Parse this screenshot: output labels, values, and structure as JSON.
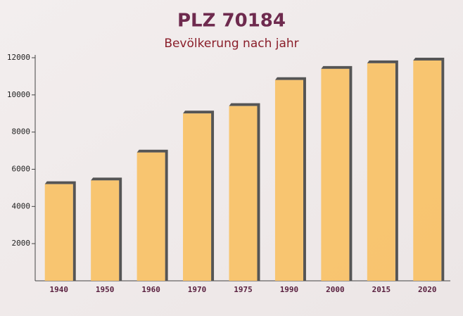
{
  "chart_data": {
    "type": "bar",
    "title": "PLZ 70184",
    "subtitle": "Bevölkerung nach jahr",
    "categories": [
      "1940",
      "1950",
      "1960",
      "1970",
      "1975",
      "1990",
      "2000",
      "2015",
      "2020"
    ],
    "values": [
      5200,
      5400,
      6900,
      9000,
      9400,
      10800,
      11400,
      11700,
      11850
    ],
    "color": "#f8c165",
    "ylim": [
      0,
      12000
    ],
    "yticks": [
      2000,
      4000,
      6000,
      8000,
      10000,
      12000
    ]
  }
}
